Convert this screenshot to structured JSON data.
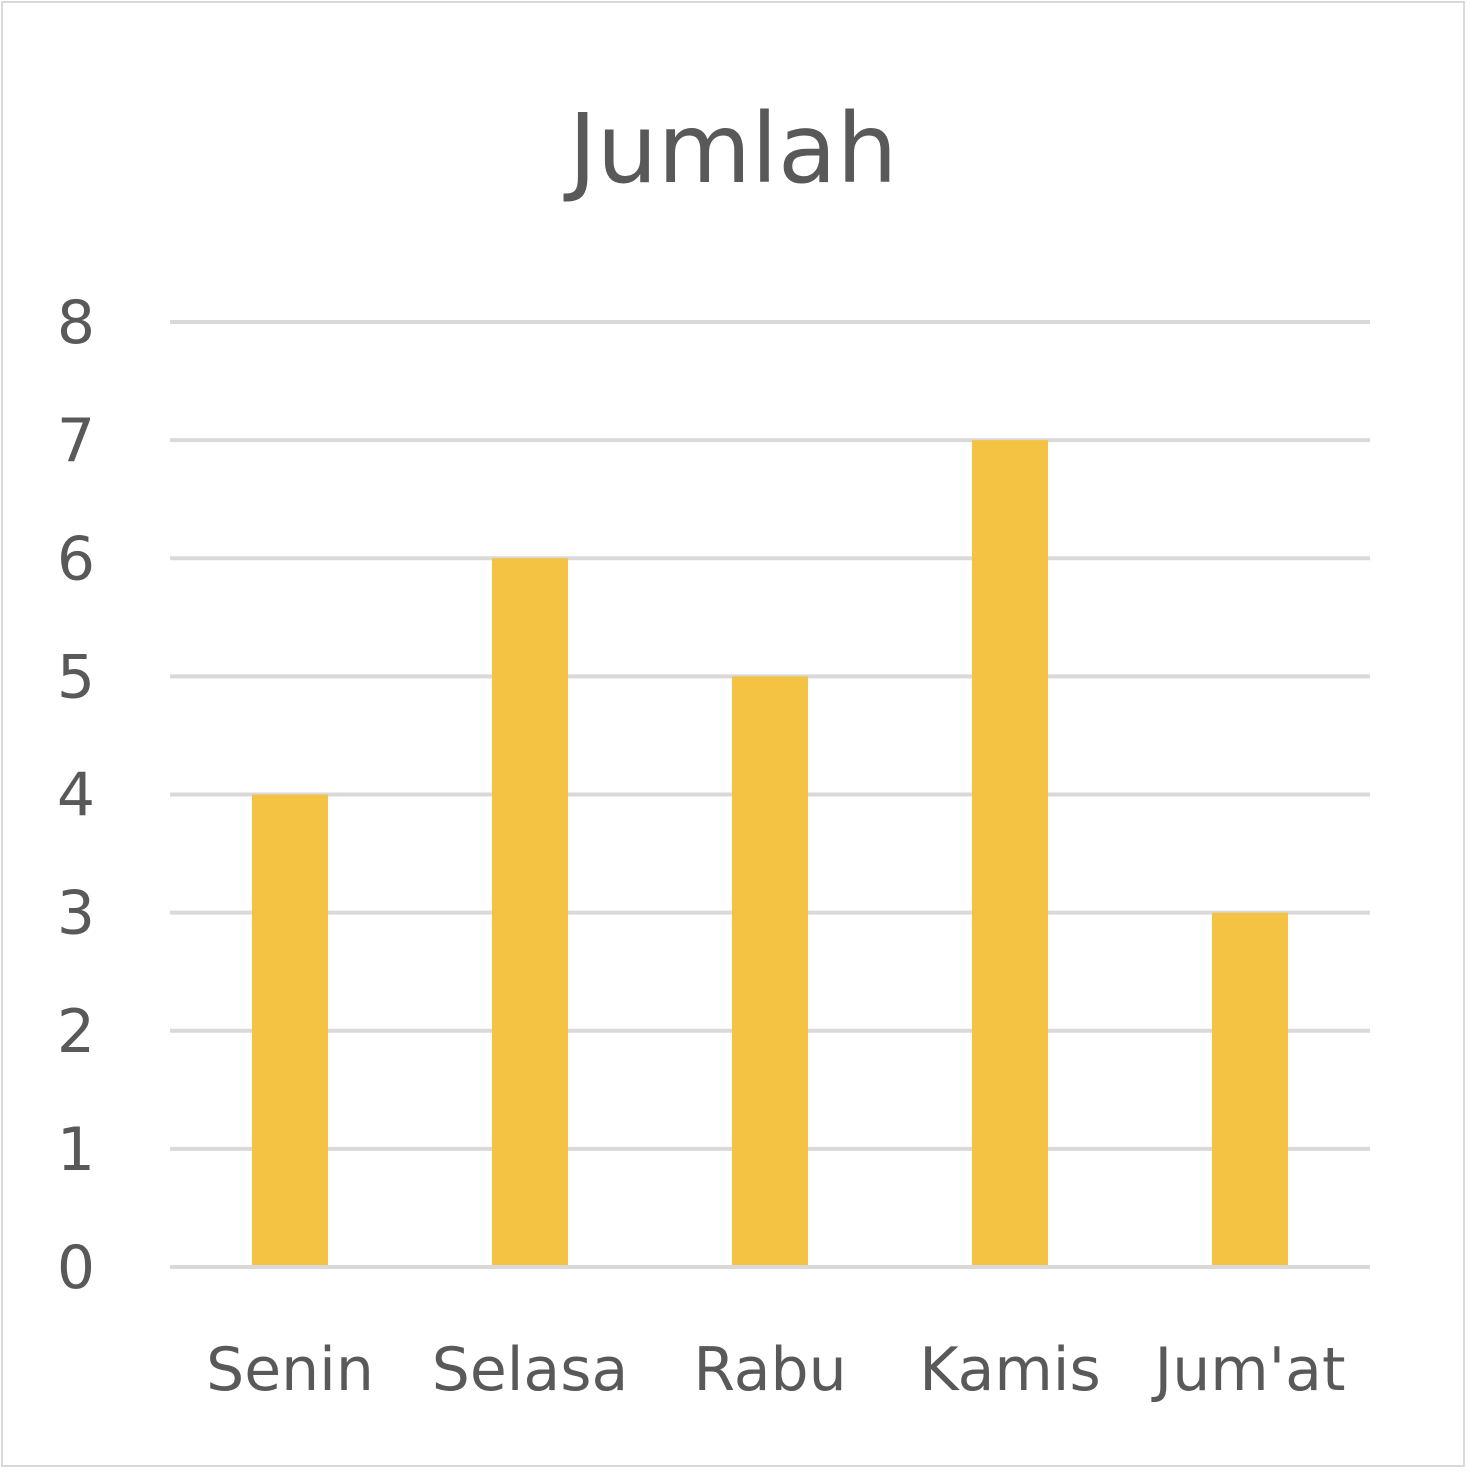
{
  "chart_data": {
    "type": "bar",
    "title": "Jumlah",
    "categories": [
      "Senin",
      "Selasa",
      "Rabu",
      "Kamis",
      "Jum'at"
    ],
    "series": [
      {
        "name": "Jumlah",
        "values": [
          4,
          6,
          5,
          7,
          3
        ]
      }
    ],
    "xlabel": "",
    "ylabel": "",
    "ylim": [
      0,
      8
    ],
    "yticks": [
      0,
      1,
      2,
      3,
      4,
      5,
      6,
      7,
      8
    ],
    "grid": true,
    "legend": "none",
    "colors": {
      "bar": "#F4C343",
      "grid": "#D9D9D9",
      "text": "#595959",
      "border": "#D9D9D9"
    }
  }
}
